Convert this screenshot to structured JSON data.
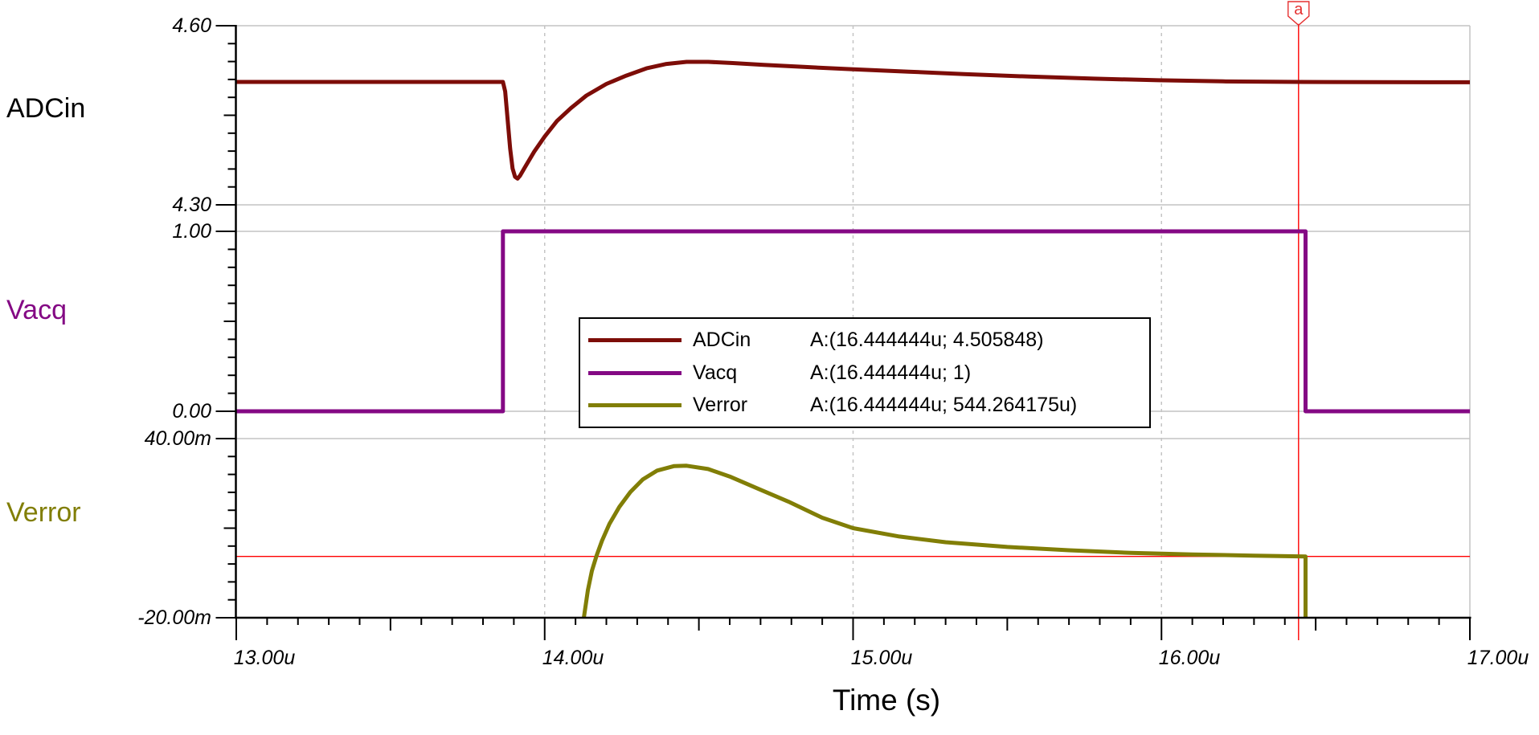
{
  "panels": [
    {
      "label": "ADCin",
      "label_color": "#000000",
      "trace_color": "#7d0d08",
      "y_top": "4.60",
      "y_bottom": "4.30"
    },
    {
      "label": "Vacq",
      "label_color": "#840984",
      "trace_color": "#840984",
      "y_top": "1.00",
      "y_bottom": "0.00"
    },
    {
      "label": "Verror",
      "label_color": "#817e06",
      "trace_color": "#817e06",
      "y_top": "40.00m",
      "y_bottom": "-20.00m"
    }
  ],
  "x_axis": {
    "title": "Time (s)",
    "tick_labels": [
      "13.00u",
      "14.00u",
      "15.00u",
      "16.00u",
      "17.00u"
    ]
  },
  "cursor": {
    "label": "a",
    "x_us": 16.444444,
    "line_color": "#ff0000",
    "flag_color": "#e53030",
    "crosshair_value_v": 0.000544264175
  },
  "legend": {
    "items": [
      {
        "name": "ADCin",
        "reading": "A:(16.444444u; 4.505848)",
        "color": "#7d0d08"
      },
      {
        "name": "Vacq",
        "reading": "A:(16.444444u; 1)",
        "color": "#840984"
      },
      {
        "name": "Verror",
        "reading": "A:(16.444444u; 544.264175u)",
        "color": "#817e06"
      }
    ]
  },
  "colors": {
    "grid": "#c4c4c4",
    "axis": "#000000",
    "background": "#ffffff"
  },
  "chart_data": {
    "type": "line",
    "x_unit": "us",
    "x_range_us": [
      13,
      17
    ],
    "x_tick_labels": [
      "13.00u",
      "14.00u",
      "15.00u",
      "16.00u",
      "17.00u"
    ],
    "xlabel": "Time (s)",
    "grid": true,
    "panels": [
      {
        "name": "ADCin",
        "unit": "V",
        "ylim": [
          4.3,
          4.6
        ],
        "y_tick_labels": [
          "4.30",
          "4.60"
        ]
      },
      {
        "name": "Vacq",
        "unit": "V",
        "ylim": [
          0,
          1
        ],
        "y_tick_labels": [
          "0.00",
          "1.00"
        ]
      },
      {
        "name": "Verror",
        "unit": "V",
        "ylim": [
          -0.02,
          0.04
        ],
        "y_tick_labels": [
          "-20.00m",
          "40.00m"
        ]
      }
    ],
    "series": [
      {
        "name": "ADCin",
        "panel": 0,
        "color": "#7d0d08",
        "points": [
          [
            13.0,
            4.5058
          ],
          [
            13.8646,
            4.5058
          ],
          [
            13.872,
            4.49
          ],
          [
            13.88,
            4.442
          ],
          [
            13.888,
            4.394
          ],
          [
            13.896,
            4.361
          ],
          [
            13.904,
            4.347
          ],
          [
            13.912,
            4.344
          ],
          [
            13.92,
            4.3485
          ],
          [
            13.935,
            4.362
          ],
          [
            13.966,
            4.389
          ],
          [
            14.0,
            4.4145
          ],
          [
            14.04,
            4.4405
          ],
          [
            14.085,
            4.462
          ],
          [
            14.135,
            4.483
          ],
          [
            14.2,
            4.5025
          ],
          [
            14.265,
            4.5165
          ],
          [
            14.33,
            4.5285
          ],
          [
            14.395,
            4.536
          ],
          [
            14.46,
            4.5395
          ],
          [
            14.53,
            4.5395
          ],
          [
            14.61,
            4.5375
          ],
          [
            14.71,
            4.5345
          ],
          [
            14.84,
            4.531
          ],
          [
            15.0,
            4.527
          ],
          [
            15.18,
            4.523
          ],
          [
            15.36,
            4.519
          ],
          [
            15.57,
            4.5148
          ],
          [
            15.78,
            4.5113
          ],
          [
            15.99,
            4.5086
          ],
          [
            16.2,
            4.5068
          ],
          [
            16.444444,
            4.505848
          ],
          [
            16.7,
            4.5054
          ],
          [
            17.0,
            4.5053
          ]
        ]
      },
      {
        "name": "Vacq",
        "panel": 1,
        "color": "#840984",
        "points": [
          [
            13.0,
            0
          ],
          [
            13.8646,
            0
          ],
          [
            13.8646,
            1
          ],
          [
            16.467,
            1
          ],
          [
            16.467,
            0
          ],
          [
            17.0,
            0
          ]
        ]
      },
      {
        "name": "Verror",
        "panel": 2,
        "color": "#817e06",
        "points": [
          [
            14.127,
            -0.02
          ],
          [
            14.14,
            -0.0108
          ],
          [
            14.153,
            -0.0043
          ],
          [
            14.168,
            0.0007
          ],
          [
            14.186,
            0.0058
          ],
          [
            14.21,
            0.0114
          ],
          [
            14.242,
            0.0171
          ],
          [
            14.278,
            0.0221
          ],
          [
            14.318,
            0.0263
          ],
          [
            14.365,
            0.0293
          ],
          [
            14.42,
            0.0308
          ],
          [
            14.46,
            0.0309
          ],
          [
            14.53,
            0.0298
          ],
          [
            14.6,
            0.0273
          ],
          [
            14.69,
            0.0233
          ],
          [
            14.79,
            0.0189
          ],
          [
            14.9,
            0.0135
          ],
          [
            15.0,
            0.01
          ],
          [
            15.15,
            0.0072
          ],
          [
            15.3,
            0.0053
          ],
          [
            15.5,
            0.0037
          ],
          [
            15.7,
            0.0026
          ],
          [
            15.9,
            0.0017
          ],
          [
            16.1,
            0.0012
          ],
          [
            16.3,
            0.0008
          ],
          [
            16.444444,
            0.000544
          ],
          [
            16.467,
            0.00052
          ],
          [
            16.467,
            -0.02
          ]
        ]
      }
    ],
    "cursor": {
      "name": "a",
      "x_us": 16.444444,
      "readings": {
        "ADCin": 4.505848,
        "Vacq": 1,
        "Verror": 0.000544264175
      }
    }
  }
}
